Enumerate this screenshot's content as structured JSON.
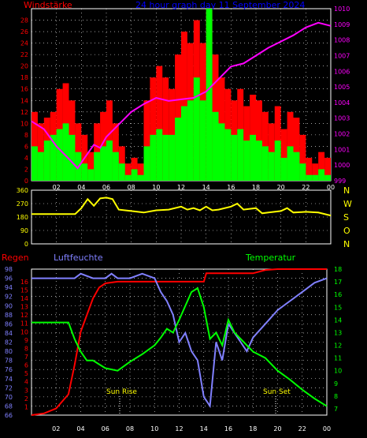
{
  "chart_data": [
    {
      "type": "bar",
      "title": "24 hour graph day  11 September 2024",
      "y_left_label": "Windstärke",
      "y_right_label": "Luftdruck",
      "ylim": [
        0,
        30
      ],
      "y2lim": [
        999,
        1010
      ],
      "y_ticks": [
        "0",
        "2",
        "4",
        "6",
        "8",
        "10",
        "12",
        "14",
        "16",
        "18",
        "20",
        "22",
        "24",
        "26",
        "28"
      ],
      "y2_ticks": [
        "999",
        "1000",
        "1001",
        "1002",
        "1003",
        "1004",
        "1005",
        "1006",
        "1007",
        "1008",
        "1009",
        "1010"
      ],
      "x_ticks": [
        "02",
        "04",
        "06",
        "08",
        "10",
        "12",
        "14",
        "16",
        "18",
        "20",
        "22",
        "00"
      ],
      "x_range_hours": [
        0,
        24
      ],
      "series": [
        {
          "name": "Windstärke",
          "style": "bars",
          "color": "#ff0000",
          "x": [
            0,
            0.5,
            1,
            1.5,
            2,
            2.5,
            3,
            3.5,
            4,
            4.5,
            5,
            5.5,
            6,
            6.5,
            7,
            7.5,
            8,
            8.5,
            9,
            9.5,
            10,
            10.5,
            11,
            11.5,
            12,
            12.5,
            13,
            13.5,
            14,
            14.5,
            15,
            15.5,
            16,
            16.5,
            17,
            17.5,
            18,
            18.5,
            19,
            19.5,
            20,
            20.5,
            21,
            21.5,
            22,
            22.5,
            23,
            23.5
          ],
          "values": [
            12,
            10,
            11,
            12,
            16,
            17,
            14,
            10,
            8,
            5,
            10,
            12,
            14,
            10,
            6,
            3,
            4,
            3,
            14,
            18,
            20,
            18,
            16,
            22,
            26,
            24,
            28,
            24,
            30,
            22,
            18,
            16,
            14,
            16,
            13,
            15,
            14,
            12,
            10,
            13,
            9,
            12,
            11,
            8,
            4,
            3,
            5,
            4
          ]
        },
        {
          "name": "",
          "style": "bars",
          "color": "#00ff00",
          "x": [
            0,
            0.5,
            1,
            1.5,
            2,
            2.5,
            3,
            3.5,
            4,
            4.5,
            5,
            5.5,
            6,
            6.5,
            7,
            7.5,
            8,
            8.5,
            9,
            9.5,
            10,
            10.5,
            11,
            11.5,
            12,
            12.5,
            13,
            13.5,
            14,
            14.5,
            15,
            15.5,
            16,
            16.5,
            17,
            17.5,
            18,
            18.5,
            19,
            19.5,
            20,
            20.5,
            21,
            21.5,
            22,
            22.5,
            23,
            23.5
          ],
          "values": [
            6,
            5,
            7,
            8,
            9,
            10,
            8,
            5,
            3,
            2,
            5,
            6,
            7,
            5,
            3,
            1,
            2,
            1,
            6,
            8,
            9,
            8,
            8,
            11,
            13,
            14,
            18,
            14,
            30,
            12,
            10,
            9,
            8,
            9,
            7,
            8,
            7,
            6,
            5,
            7,
            4,
            6,
            5,
            3,
            1,
            1,
            2,
            1
          ]
        },
        {
          "name": "Luftdruck",
          "style": "line",
          "color": "#ff00ff",
          "x": [
            0,
            1,
            2,
            3,
            3.7,
            4.2,
            5,
            5.5,
            6,
            7,
            8,
            9,
            10,
            11,
            12,
            13,
            14,
            15,
            16,
            17,
            18,
            19,
            20,
            21,
            22,
            23,
            24
          ],
          "values": [
            1002.8,
            1002.3,
            1001.2,
            1000.4,
            999.8,
            1000.4,
            1001.3,
            1001.1,
            1001.8,
            1002.6,
            1003.4,
            1003.9,
            1004.3,
            1004.1,
            1004.2,
            1004.3,
            1004.7,
            1005.5,
            1006.3,
            1006.5,
            1007.0,
            1007.5,
            1007.9,
            1008.3,
            1008.8,
            1009.1,
            1008.9
          ]
        }
      ]
    },
    {
      "type": "line",
      "title": "",
      "ylim": [
        0,
        360
      ],
      "y_ticks": [
        "0",
        "90",
        "180",
        "270",
        "360"
      ],
      "right_labels": [
        "N",
        "W",
        "S",
        "O",
        "N"
      ],
      "x_range_hours": [
        0,
        24
      ],
      "series": [
        {
          "name": "",
          "color": "#ffff00",
          "x": [
            0,
            3.5,
            4,
            4.5,
            5,
            5.5,
            6,
            6.5,
            7,
            8,
            9,
            10,
            11,
            12,
            12.5,
            13,
            13.5,
            14,
            14.5,
            15,
            16,
            16.5,
            17,
            18,
            18.5,
            19,
            20,
            20.5,
            21,
            22,
            23,
            24
          ],
          "values": [
            200,
            200,
            240,
            300,
            255,
            305,
            310,
            300,
            230,
            220,
            210,
            225,
            230,
            250,
            230,
            240,
            225,
            250,
            225,
            230,
            250,
            270,
            230,
            240,
            205,
            210,
            220,
            240,
            210,
            215,
            210,
            190
          ]
        }
      ]
    },
    {
      "type": "line",
      "title": "",
      "legend_left": "Regen",
      "legend_mid": "Luftfeuchte",
      "legend_right": "Temperatur",
      "hum_lim": [
        66,
        98
      ],
      "temp_lim": [
        6.5,
        18
      ],
      "hum_ticks": [
        "66",
        "68",
        "70",
        "72",
        "74",
        "76",
        "78",
        "80",
        "82",
        "84",
        "86",
        "88",
        "90",
        "92",
        "94",
        "96",
        "98"
      ],
      "rain_ticks": [
        "1",
        "2",
        "3",
        "4",
        "5",
        "6",
        "7",
        "8",
        "9",
        "10",
        "11",
        "12",
        "13",
        "14",
        "15",
        "16"
      ],
      "temp_ticks": [
        "7",
        "8",
        "9",
        "10",
        "11",
        "12",
        "13",
        "14",
        "15",
        "16",
        "17",
        "18"
      ],
      "x_ticks": [
        "02",
        "04",
        "06",
        "08",
        "10",
        "12",
        "14",
        "16",
        "18",
        "20",
        "22",
        "00"
      ],
      "annotations": [
        "Sun Rise",
        "Sun Set"
      ],
      "x_range_hours": [
        0,
        24
      ],
      "series": [
        {
          "name": "Regen",
          "color": "#ff0000",
          "x": [
            0,
            1,
            2,
            3,
            3.5,
            4,
            4.5,
            5,
            5.5,
            6,
            7,
            8,
            13.5,
            14,
            14.2,
            18,
            19,
            20,
            24
          ],
          "values": [
            0.0,
            0.2,
            0.8,
            2.5,
            6,
            10,
            12,
            14,
            15.3,
            15.8,
            16.0,
            16.0,
            16.0,
            16.0,
            17.0,
            17.0,
            17.4,
            17.5,
            17.5
          ]
        },
        {
          "name": "Luftfeuchte",
          "color": "#8080ff",
          "x": [
            0,
            3.5,
            4,
            5,
            6,
            6.5,
            7,
            8,
            9,
            10,
            10.5,
            11,
            11.5,
            12,
            12.5,
            13,
            13.5,
            14,
            14.5,
            15,
            15.5,
            16,
            16.5,
            17,
            17.5,
            18,
            19,
            20,
            21,
            22,
            23,
            24
          ],
          "values": [
            96,
            96,
            97,
            96,
            96,
            97,
            96,
            96,
            97,
            96,
            93,
            91,
            88,
            82,
            84,
            80,
            78,
            70,
            68,
            82,
            78,
            86,
            84,
            82,
            80,
            83,
            86,
            89,
            91,
            93,
            95,
            96
          ]
        },
        {
          "name": "Temperatur",
          "color": "#00ff00",
          "x": [
            0,
            2,
            3,
            3.5,
            4,
            4.5,
            5,
            6,
            7,
            8,
            9,
            10,
            10.5,
            11,
            11.5,
            12,
            13,
            13.5,
            14,
            14.5,
            15,
            15.5,
            16,
            16.5,
            17,
            17.5,
            18,
            19,
            20,
            21,
            22,
            23,
            24
          ],
          "values": [
            13.8,
            13.8,
            13.8,
            12.5,
            11.5,
            10.8,
            10.8,
            10.2,
            10.0,
            10.7,
            11.3,
            12.0,
            12.6,
            13.3,
            13.0,
            14.0,
            16.2,
            16.5,
            15.0,
            12.5,
            13.0,
            12.0,
            14.0,
            13.0,
            12.5,
            12.0,
            11.5,
            11.0,
            10.0,
            9.3,
            8.5,
            7.8,
            7.2
          ]
        }
      ]
    }
  ]
}
